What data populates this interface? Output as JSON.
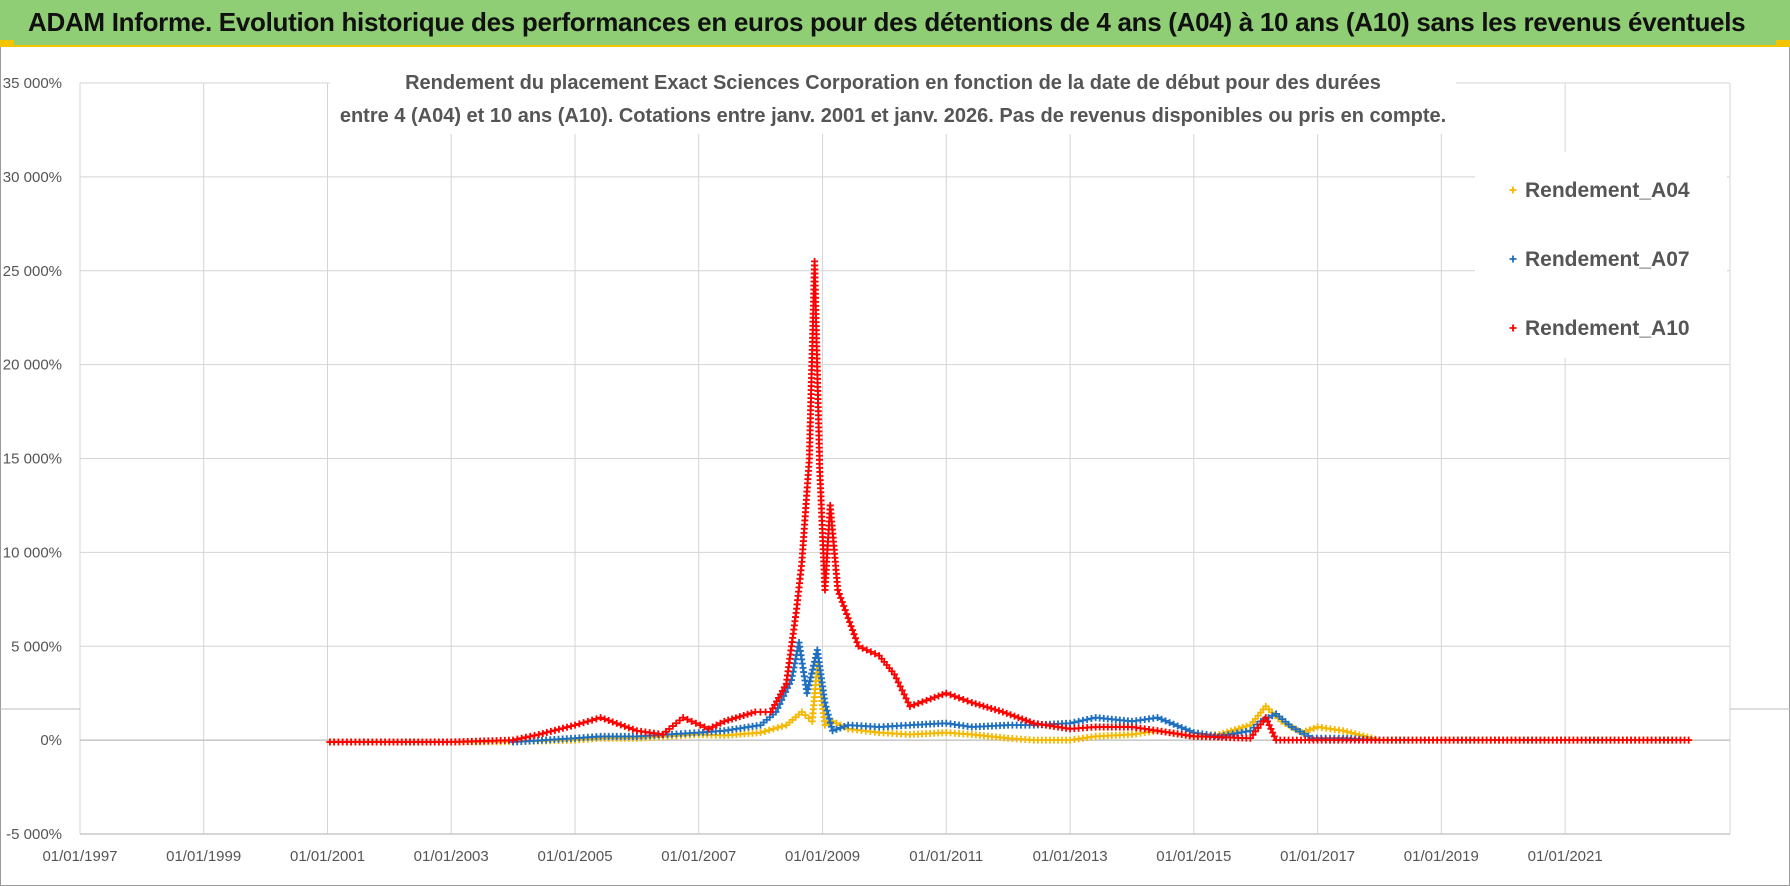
{
  "header": {
    "title": "ADAM Informe. Evolution historique des performances en euros pour des détentions de 4 ans (A04) à 10 ans (A10) sans les revenus éventuels"
  },
  "colors": {
    "banner": "#8fce74",
    "banner_accent": "#f2c500",
    "A04": "#f5b800",
    "A07": "#1f6fc0",
    "A10": "#ff0000"
  },
  "chart_data": {
    "type": "scatter",
    "title_lines": [
      "Rendement du placement Exact Sciences Corporation en fonction de la date de début pour des durées",
      "entre 4 (A04) et 10 ans (A10).  Cotations entre janv. 2001 et janv. 2026. Pas de revenus disponibles ou pris en compte."
    ],
    "x_ticks": [
      "01/01/1997",
      "01/01/1999",
      "01/01/2001",
      "01/01/2003",
      "01/01/2005",
      "01/01/2007",
      "01/01/2009",
      "01/01/2011",
      "01/01/2013",
      "01/01/2015",
      "01/01/2017",
      "01/01/2019",
      "01/01/2021"
    ],
    "xlim": [
      "1997-01-01",
      "2023-09-01"
    ],
    "ylim": [
      -5000,
      35000
    ],
    "y_ticks": [
      "-5 000%",
      "0%",
      "5 000%",
      "10 000%",
      "15 000%",
      "20 000%",
      "25 000%",
      "30 000%",
      "35 000%"
    ],
    "legend_position": "top-right",
    "grid": true,
    "series": [
      {
        "name": "Rendement_A04",
        "points": [
          [
            "2001-01-15",
            -100
          ],
          [
            "2002-01-01",
            -100
          ],
          [
            "2003-01-01",
            -100
          ],
          [
            "2004-01-01",
            -80
          ],
          [
            "2005-01-01",
            0
          ],
          [
            "2005-06-01",
            100
          ],
          [
            "2006-01-01",
            100
          ],
          [
            "2006-07-01",
            200
          ],
          [
            "2007-01-01",
            300
          ],
          [
            "2007-06-01",
            250
          ],
          [
            "2008-01-01",
            400
          ],
          [
            "2008-06-01",
            800
          ],
          [
            "2008-09-01",
            1500
          ],
          [
            "2008-11-01",
            1000
          ],
          [
            "2008-12-01",
            4000
          ],
          [
            "2009-01-15",
            800
          ],
          [
            "2009-03-01",
            1000
          ],
          [
            "2009-06-01",
            600
          ],
          [
            "2009-12-01",
            400
          ],
          [
            "2010-06-01",
            300
          ],
          [
            "2011-01-01",
            400
          ],
          [
            "2011-06-01",
            300
          ],
          [
            "2012-01-01",
            100
          ],
          [
            "2012-06-01",
            0
          ],
          [
            "2013-01-01",
            0
          ],
          [
            "2013-06-01",
            200
          ],
          [
            "2014-01-01",
            300
          ],
          [
            "2014-06-01",
            500
          ],
          [
            "2015-01-01",
            200
          ],
          [
            "2015-06-01",
            300
          ],
          [
            "2015-12-01",
            800
          ],
          [
            "2016-03-01",
            1800
          ],
          [
            "2016-06-01",
            1000
          ],
          [
            "2016-10-01",
            400
          ],
          [
            "2017-01-01",
            700
          ],
          [
            "2017-06-01",
            500
          ],
          [
            "2018-01-01",
            0
          ],
          [
            "2019-01-01",
            0
          ],
          [
            "2020-01-01",
            0
          ],
          [
            "2021-01-01",
            0
          ],
          [
            "2022-01-01",
            0
          ],
          [
            "2022-12-31",
            0
          ]
        ]
      },
      {
        "name": "Rendement_A07",
        "points": [
          [
            "2004-01-01",
            -100
          ],
          [
            "2005-01-01",
            100
          ],
          [
            "2005-06-01",
            200
          ],
          [
            "2006-01-01",
            200
          ],
          [
            "2006-07-01",
            300
          ],
          [
            "2007-01-01",
            400
          ],
          [
            "2007-06-01",
            500
          ],
          [
            "2008-01-01",
            800
          ],
          [
            "2008-04-01",
            1500
          ],
          [
            "2008-07-01",
            3200
          ],
          [
            "2008-08-15",
            5200
          ],
          [
            "2008-10-01",
            2500
          ],
          [
            "2008-12-01",
            4800
          ],
          [
            "2009-01-15",
            2000
          ],
          [
            "2009-03-01",
            500
          ],
          [
            "2009-06-01",
            800
          ],
          [
            "2009-12-01",
            700
          ],
          [
            "2010-06-01",
            800
          ],
          [
            "2011-01-01",
            900
          ],
          [
            "2011-06-01",
            700
          ],
          [
            "2012-01-01",
            800
          ],
          [
            "2012-06-01",
            800
          ],
          [
            "2013-01-01",
            900
          ],
          [
            "2013-06-01",
            1200
          ],
          [
            "2014-01-01",
            1000
          ],
          [
            "2014-06-01",
            1200
          ],
          [
            "2015-01-01",
            400
          ],
          [
            "2015-06-01",
            200
          ],
          [
            "2015-12-01",
            500
          ],
          [
            "2016-02-01",
            1000
          ],
          [
            "2016-05-01",
            1400
          ],
          [
            "2016-08-01",
            700
          ],
          [
            "2016-12-01",
            100
          ],
          [
            "2017-06-01",
            100
          ],
          [
            "2018-01-01",
            0
          ]
        ]
      },
      {
        "name": "Rendement_A10",
        "points": [
          [
            "2001-01-15",
            -100
          ],
          [
            "2002-01-01",
            -100
          ],
          [
            "2003-01-01",
            -100
          ],
          [
            "2004-01-01",
            0
          ],
          [
            "2004-06-01",
            300
          ],
          [
            "2005-01-01",
            800
          ],
          [
            "2005-06-01",
            1200
          ],
          [
            "2006-01-01",
            500
          ],
          [
            "2006-06-01",
            300
          ],
          [
            "2006-10-01",
            1200
          ],
          [
            "2007-03-01",
            600
          ],
          [
            "2007-06-01",
            1000
          ],
          [
            "2007-12-01",
            1500
          ],
          [
            "2008-03-01",
            1500
          ],
          [
            "2008-06-01",
            3000
          ],
          [
            "2008-08-01",
            7000
          ],
          [
            "2008-09-01",
            9500
          ],
          [
            "2008-10-15",
            15000
          ],
          [
            "2008-11-15",
            25500
          ],
          [
            "2008-12-15",
            14500
          ],
          [
            "2009-01-15",
            8000
          ],
          [
            "2009-02-15",
            12500
          ],
          [
            "2009-04-01",
            8000
          ],
          [
            "2009-06-01",
            6500
          ],
          [
            "2009-08-01",
            5000
          ],
          [
            "2009-12-01",
            4500
          ],
          [
            "2010-03-01",
            3500
          ],
          [
            "2010-06-01",
            1800
          ],
          [
            "2010-10-01",
            2200
          ],
          [
            "2011-01-01",
            2500
          ],
          [
            "2011-06-01",
            2000
          ],
          [
            "2011-12-01",
            1500
          ],
          [
            "2012-06-01",
            900
          ],
          [
            "2013-01-01",
            600
          ],
          [
            "2013-06-01",
            700
          ],
          [
            "2014-01-01",
            700
          ],
          [
            "2014-06-01",
            500
          ],
          [
            "2015-01-01",
            200
          ],
          [
            "2015-12-01",
            100
          ],
          [
            "2016-03-01",
            1200
          ],
          [
            "2016-05-01",
            0
          ],
          [
            "2017-01-01",
            0
          ],
          [
            "2018-01-01",
            0
          ],
          [
            "2019-01-01",
            0
          ],
          [
            "2020-01-01",
            0
          ],
          [
            "2021-01-01",
            0
          ],
          [
            "2022-12-31",
            0
          ]
        ]
      }
    ]
  }
}
